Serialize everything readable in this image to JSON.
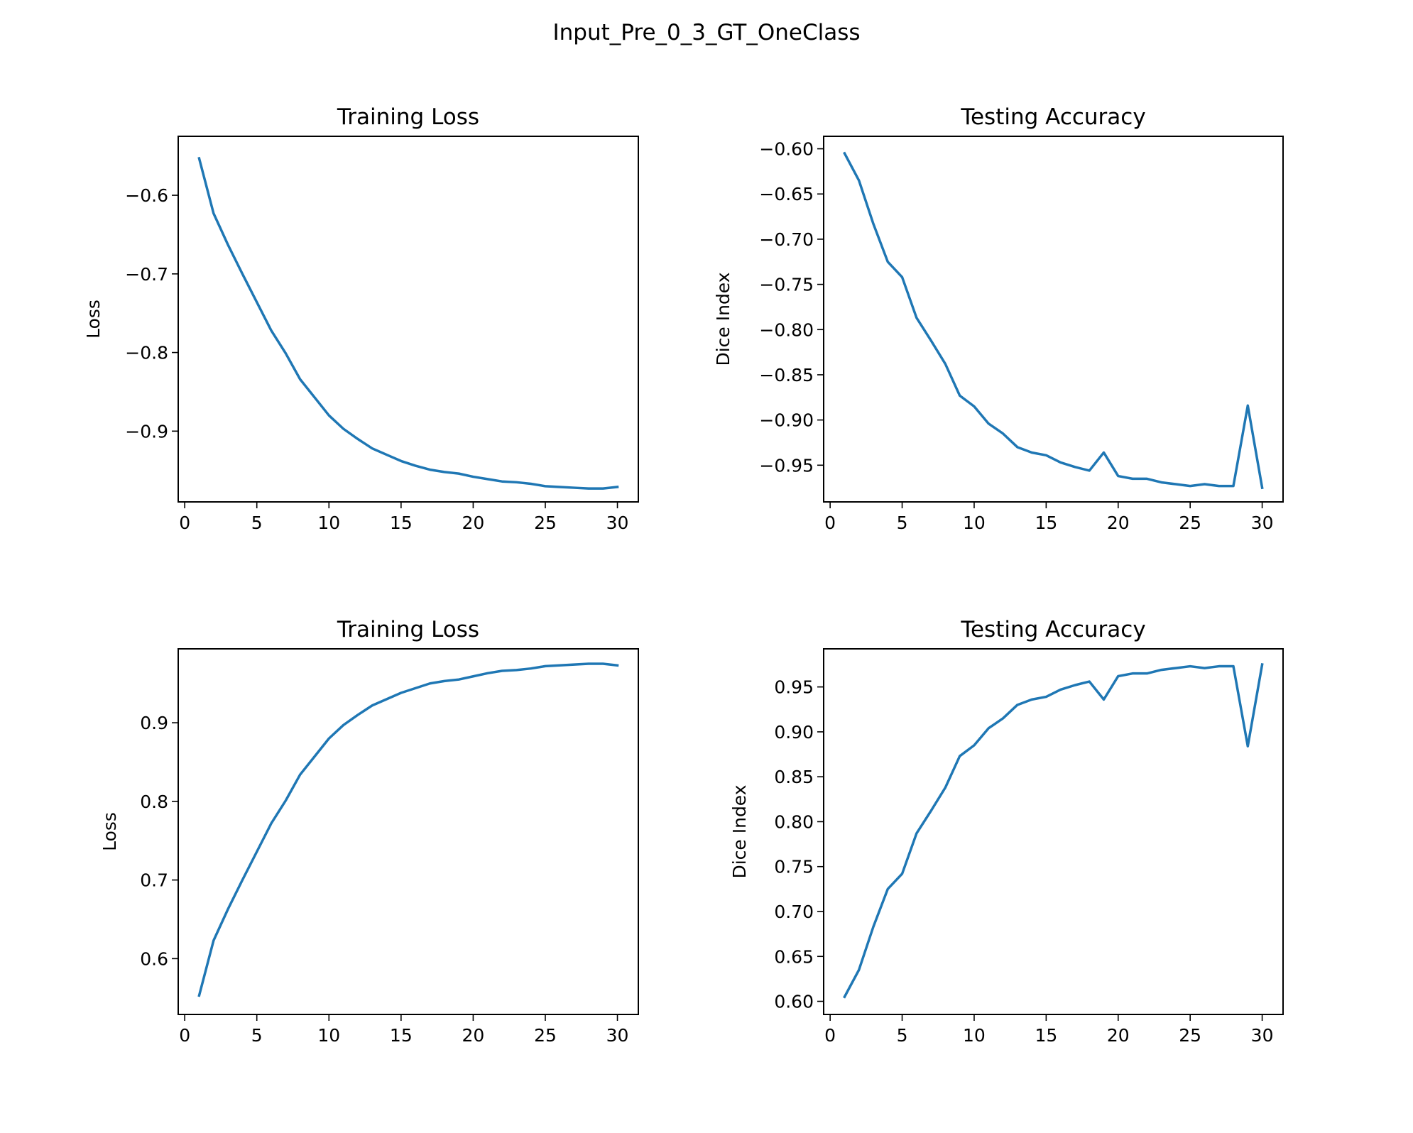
{
  "figure": {
    "suptitle": "Input_Pre_0_3_GT_OneClass"
  },
  "chart_data": [
    {
      "type": "line",
      "title": "Training Loss",
      "xlabel": "",
      "ylabel": "Loss",
      "xlim": [
        -0.45,
        31.45
      ],
      "ylim": [
        -0.99,
        -0.525
      ],
      "xticks": [
        0,
        5,
        10,
        15,
        20,
        25,
        30
      ],
      "xtick_labels": [
        "0",
        "5",
        "10",
        "15",
        "20",
        "25",
        "30"
      ],
      "yticks": [
        -0.6,
        -0.7,
        -0.8,
        -0.9
      ],
      "ytick_labels": [
        "−0.6",
        "−0.7",
        "−0.8",
        "−0.9"
      ],
      "color": "#1f77b4",
      "x": [
        1,
        2,
        3,
        4,
        5,
        6,
        7,
        8,
        9,
        10,
        11,
        12,
        13,
        14,
        15,
        16,
        17,
        18,
        19,
        20,
        21,
        22,
        23,
        24,
        25,
        26,
        27,
        28,
        29,
        30
      ],
      "y": [
        -0.553,
        -0.623,
        -0.663,
        -0.7,
        -0.736,
        -0.772,
        -0.801,
        -0.834,
        -0.857,
        -0.88,
        -0.897,
        -0.91,
        -0.922,
        -0.93,
        -0.938,
        -0.944,
        -0.949,
        -0.952,
        -0.954,
        -0.958,
        -0.961,
        -0.964,
        -0.965,
        -0.967,
        -0.97,
        -0.971,
        -0.972,
        -0.973,
        -0.973,
        -0.971
      ]
    },
    {
      "type": "line",
      "title": "Testing Accuracy",
      "xlabel": "",
      "ylabel": "Dice Index",
      "xlim": [
        -0.45,
        31.45
      ],
      "ylim": [
        -0.9906,
        -0.5862
      ],
      "xticks": [
        0,
        5,
        10,
        15,
        20,
        25,
        30
      ],
      "xtick_labels": [
        "0",
        "5",
        "10",
        "15",
        "20",
        "25",
        "30"
      ],
      "yticks": [
        -0.6,
        -0.65,
        -0.7,
        -0.75,
        -0.8,
        -0.85,
        -0.9,
        -0.95
      ],
      "ytick_labels": [
        "−0.60",
        "−0.65",
        "−0.70",
        "−0.75",
        "−0.80",
        "−0.85",
        "−0.90",
        "−0.95"
      ],
      "color": "#1f77b4",
      "x": [
        1,
        2,
        3,
        4,
        5,
        6,
        7,
        8,
        9,
        10,
        11,
        12,
        13,
        14,
        15,
        16,
        17,
        18,
        19,
        20,
        21,
        22,
        23,
        24,
        25,
        26,
        27,
        28,
        29,
        30
      ],
      "y": [
        -0.605,
        -0.635,
        -0.683,
        -0.725,
        -0.742,
        -0.787,
        -0.812,
        -0.838,
        -0.873,
        -0.885,
        -0.904,
        -0.915,
        -0.93,
        -0.936,
        -0.939,
        -0.947,
        -0.952,
        -0.956,
        -0.936,
        -0.962,
        -0.965,
        -0.965,
        -0.969,
        -0.971,
        -0.973,
        -0.971,
        -0.973,
        -0.973,
        -0.884,
        -0.975
      ]
    },
    {
      "type": "line",
      "title": "Training Loss",
      "xlabel": "",
      "ylabel": "Loss",
      "xlim": [
        -0.45,
        31.45
      ],
      "ylim": [
        0.529,
        0.994
      ],
      "xticks": [
        0,
        5,
        10,
        15,
        20,
        25,
        30
      ],
      "xtick_labels": [
        "0",
        "5",
        "10",
        "15",
        "20",
        "25",
        "30"
      ],
      "yticks": [
        0.6,
        0.7,
        0.8,
        0.9
      ],
      "ytick_labels": [
        "0.6",
        "0.7",
        "0.8",
        "0.9"
      ],
      "color": "#1f77b4",
      "x": [
        1,
        2,
        3,
        4,
        5,
        6,
        7,
        8,
        9,
        10,
        11,
        12,
        13,
        14,
        15,
        16,
        17,
        18,
        19,
        20,
        21,
        22,
        23,
        24,
        25,
        26,
        27,
        28,
        29,
        30
      ],
      "y": [
        0.553,
        0.623,
        0.663,
        0.7,
        0.736,
        0.772,
        0.801,
        0.834,
        0.857,
        0.88,
        0.897,
        0.91,
        0.922,
        0.93,
        0.938,
        0.944,
        0.95,
        0.953,
        0.955,
        0.959,
        0.963,
        0.966,
        0.967,
        0.969,
        0.972,
        0.973,
        0.974,
        0.975,
        0.975,
        0.973
      ]
    },
    {
      "type": "line",
      "title": "Testing Accuracy",
      "xlabel": "",
      "ylabel": "Dice Index",
      "xlim": [
        -0.45,
        31.45
      ],
      "ylim": [
        0.5854,
        0.9924
      ],
      "xticks": [
        0,
        5,
        10,
        15,
        20,
        25,
        30
      ],
      "xtick_labels": [
        "0",
        "5",
        "10",
        "15",
        "20",
        "25",
        "30"
      ],
      "yticks": [
        0.6,
        0.65,
        0.7,
        0.75,
        0.8,
        0.85,
        0.9,
        0.95
      ],
      "ytick_labels": [
        "0.60",
        "0.65",
        "0.70",
        "0.75",
        "0.80",
        "0.85",
        "0.90",
        "0.95"
      ],
      "color": "#1f77b4",
      "x": [
        1,
        2,
        3,
        4,
        5,
        6,
        7,
        8,
        9,
        10,
        11,
        12,
        13,
        14,
        15,
        16,
        17,
        18,
        19,
        20,
        21,
        22,
        23,
        24,
        25,
        26,
        27,
        28,
        29,
        30
      ],
      "y": [
        0.605,
        0.635,
        0.683,
        0.725,
        0.742,
        0.787,
        0.812,
        0.838,
        0.873,
        0.885,
        0.904,
        0.915,
        0.93,
        0.936,
        0.939,
        0.947,
        0.952,
        0.956,
        0.936,
        0.962,
        0.965,
        0.965,
        0.969,
        0.971,
        0.973,
        0.971,
        0.973,
        0.973,
        0.884,
        0.975
      ]
    }
  ]
}
